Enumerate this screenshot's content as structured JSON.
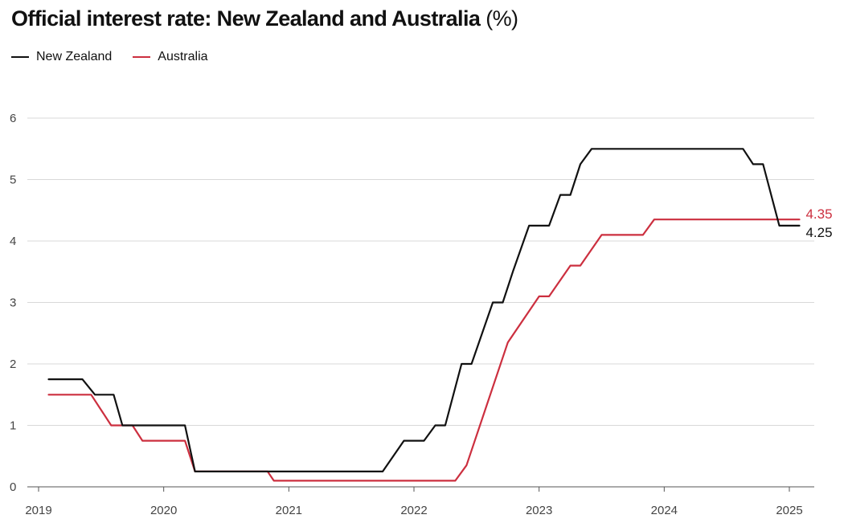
{
  "title": "Official interest rate: New Zealand and Australia",
  "title_unit": "(%)",
  "chart_data": {
    "type": "line",
    "title": "Official interest rate: New Zealand and Australia (%)",
    "ylim": [
      0,
      6
    ],
    "yticks": [
      "0",
      "1",
      "2",
      "3",
      "4",
      "5",
      "6"
    ],
    "xlim": [
      2019.0,
      2025.2
    ],
    "xticks": [
      "2019",
      "2020",
      "2021",
      "2022",
      "2023",
      "2024",
      "2025"
    ],
    "grid": "horizontal",
    "legend_position": "top-left",
    "series": [
      {
        "name": "New Zealand",
        "color": "#111111",
        "end_label": "4.25",
        "points": [
          [
            2019.08,
            1.75
          ],
          [
            2019.35,
            1.75
          ],
          [
            2019.45,
            1.5
          ],
          [
            2019.6,
            1.5
          ],
          [
            2019.67,
            1.0
          ],
          [
            2020.17,
            1.0
          ],
          [
            2020.25,
            0.25
          ],
          [
            2021.75,
            0.25
          ],
          [
            2021.92,
            0.75
          ],
          [
            2022.08,
            0.75
          ],
          [
            2022.17,
            1.0
          ],
          [
            2022.25,
            1.0
          ],
          [
            2022.38,
            2.0
          ],
          [
            2022.46,
            2.0
          ],
          [
            2022.63,
            3.0
          ],
          [
            2022.71,
            3.0
          ],
          [
            2022.79,
            3.5
          ],
          [
            2022.92,
            4.25
          ],
          [
            2023.08,
            4.25
          ],
          [
            2023.17,
            4.75
          ],
          [
            2023.25,
            4.75
          ],
          [
            2023.33,
            5.25
          ],
          [
            2023.42,
            5.5
          ],
          [
            2024.63,
            5.5
          ],
          [
            2024.71,
            5.25
          ],
          [
            2024.79,
            5.25
          ],
          [
            2024.92,
            4.25
          ],
          [
            2025.08,
            4.25
          ]
        ]
      },
      {
        "name": "Australia",
        "color": "#cc2f3f",
        "end_label": "4.35",
        "points": [
          [
            2019.08,
            1.5
          ],
          [
            2019.42,
            1.5
          ],
          [
            2019.58,
            1.0
          ],
          [
            2019.75,
            1.0
          ],
          [
            2019.83,
            0.75
          ],
          [
            2020.17,
            0.75
          ],
          [
            2020.25,
            0.25
          ],
          [
            2020.83,
            0.25
          ],
          [
            2020.88,
            0.1
          ],
          [
            2022.33,
            0.1
          ],
          [
            2022.42,
            0.35
          ],
          [
            2022.75,
            2.35
          ],
          [
            2023.0,
            3.1
          ],
          [
            2023.08,
            3.1
          ],
          [
            2023.25,
            3.6
          ],
          [
            2023.33,
            3.6
          ],
          [
            2023.5,
            4.1
          ],
          [
            2023.83,
            4.1
          ],
          [
            2023.92,
            4.35
          ],
          [
            2025.08,
            4.35
          ]
        ]
      }
    ]
  }
}
